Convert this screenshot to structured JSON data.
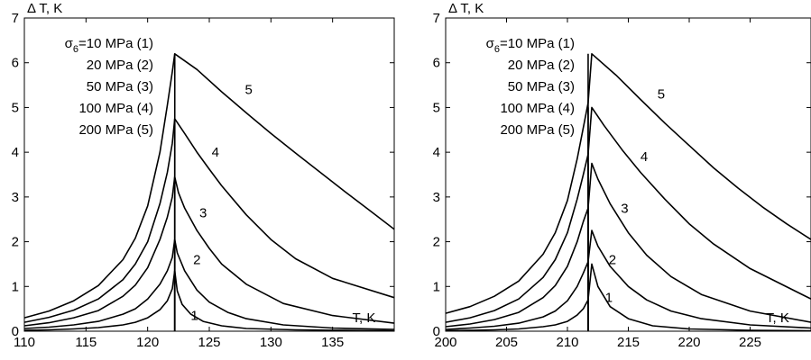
{
  "chart_data": [
    {
      "type": "line",
      "ylabel": "Δ T, K",
      "xlabel": "T, K",
      "xlim": [
        110,
        140
      ],
      "ylim": [
        0,
        7
      ],
      "xticks": [
        "110",
        "115",
        "120",
        "125",
        "130",
        "135"
      ],
      "yticks": [
        "0",
        "1",
        "2",
        "3",
        "4",
        "5",
        "6",
        "7"
      ],
      "grid": false,
      "legend": {
        "sigma_symbol": "σ",
        "sigma_subscript": "6",
        "lines": [
          "=10 MPa (1)",
          "20 MPa (2)",
          "50 MPa (3)",
          "100 MPa (4)",
          "200 MPa (5)"
        ]
      },
      "transition_T": 122.2,
      "series": [
        {
          "name": "1",
          "peak": 1.35,
          "x": [
            110,
            112,
            114,
            116,
            118,
            119,
            120,
            121,
            121.6,
            122.0,
            122.2,
            122.4,
            122.8,
            123.5,
            124.5,
            126,
            128,
            132,
            136,
            140
          ],
          "values": [
            0.02,
            0.03,
            0.05,
            0.08,
            0.14,
            0.2,
            0.3,
            0.48,
            0.68,
            0.95,
            1.35,
            0.9,
            0.6,
            0.38,
            0.22,
            0.12,
            0.06,
            0.03,
            0.02,
            0.01
          ]
        },
        {
          "name": "2",
          "peak": 2.05,
          "x": [
            110,
            112,
            114,
            116,
            118,
            119,
            120,
            121,
            121.6,
            122.0,
            122.2,
            122.4,
            123,
            124,
            125,
            126.5,
            128,
            131,
            135,
            140
          ],
          "values": [
            0.06,
            0.09,
            0.14,
            0.22,
            0.38,
            0.5,
            0.72,
            1.05,
            1.35,
            1.65,
            2.05,
            1.75,
            1.35,
            0.92,
            0.65,
            0.42,
            0.28,
            0.14,
            0.07,
            0.04
          ]
        },
        {
          "name": "3",
          "peak": 3.45,
          "x": [
            110,
            112,
            114,
            116,
            118,
            119,
            120,
            121,
            121.6,
            122.0,
            122.2,
            122.5,
            123,
            124,
            125,
            126,
            128,
            131,
            135,
            140
          ],
          "values": [
            0.12,
            0.19,
            0.3,
            0.46,
            0.78,
            1.03,
            1.42,
            2.05,
            2.55,
            3.0,
            3.45,
            3.1,
            2.75,
            2.25,
            1.85,
            1.5,
            1.05,
            0.62,
            0.35,
            0.18
          ]
        },
        {
          "name": "4",
          "peak": 4.75,
          "x": [
            110,
            112,
            114,
            116,
            118,
            119,
            120,
            121,
            121.6,
            122.0,
            122.2,
            123,
            124,
            125,
            126,
            128,
            130,
            132,
            135,
            140
          ],
          "values": [
            0.2,
            0.31,
            0.47,
            0.72,
            1.15,
            1.5,
            2.0,
            2.85,
            3.55,
            4.2,
            4.75,
            4.42,
            4.0,
            3.62,
            3.25,
            2.6,
            2.05,
            1.62,
            1.18,
            0.75
          ]
        },
        {
          "name": "5",
          "peak": 6.2,
          "x": [
            110,
            112,
            114,
            116,
            118,
            119,
            120,
            121,
            121.6,
            122.0,
            122.2,
            124,
            126,
            128,
            130,
            132,
            134,
            136,
            138,
            140
          ],
          "values": [
            0.3,
            0.45,
            0.68,
            1.02,
            1.6,
            2.08,
            2.8,
            4.0,
            5.05,
            5.8,
            6.2,
            5.85,
            5.35,
            4.88,
            4.42,
            3.98,
            3.55,
            3.12,
            2.7,
            2.28
          ]
        }
      ],
      "curve_labels": [
        {
          "text": "1",
          "x": 123.8,
          "y": 0.35
        },
        {
          "text": "2",
          "x": 124.0,
          "y": 1.6
        },
        {
          "text": "3",
          "x": 124.5,
          "y": 2.65
        },
        {
          "text": "4",
          "x": 125.5,
          "y": 4.0
        },
        {
          "text": "5",
          "x": 128.2,
          "y": 5.4
        }
      ],
      "axis_label_x_at": 136.6,
      "axis_label_y_at": 0.2
    },
    {
      "type": "line",
      "ylabel": "Δ T, K",
      "xlabel": "T, K",
      "xlim": [
        200,
        230
      ],
      "ylim": [
        0,
        7
      ],
      "xticks": [
        "200",
        "205",
        "210",
        "215",
        "220",
        "225"
      ],
      "yticks": [
        "0",
        "1",
        "2",
        "3",
        "4",
        "5",
        "6",
        "7"
      ],
      "grid": false,
      "legend": {
        "sigma_symbol": "σ",
        "sigma_subscript": "6",
        "lines": [
          "=10 MPa (1)",
          "20 MPa (2)",
          "50 MPa (3)",
          "100 MPa (4)",
          "200 MPa (5)"
        ]
      },
      "transition_T": 211.7,
      "series": [
        {
          "name": "1",
          "peak": 1.5,
          "x": [
            200,
            202,
            204,
            206,
            208,
            209,
            210,
            210.8,
            211.3,
            211.7,
            212.0,
            212.5,
            213.5,
            215,
            217,
            220,
            225,
            230
          ],
          "values": [
            0.01,
            0.02,
            0.03,
            0.05,
            0.1,
            0.14,
            0.22,
            0.36,
            0.5,
            0.7,
            1.5,
            1.0,
            0.55,
            0.28,
            0.12,
            0.05,
            0.02,
            0.01
          ]
        },
        {
          "name": "2",
          "peak": 2.25,
          "x": [
            200,
            202,
            204,
            206,
            208,
            209,
            210,
            210.8,
            211.3,
            211.7,
            212.0,
            212.5,
            213.5,
            215,
            216.5,
            218.5,
            221,
            225,
            230
          ],
          "values": [
            0.04,
            0.07,
            0.11,
            0.18,
            0.32,
            0.45,
            0.68,
            1.0,
            1.3,
            1.55,
            2.25,
            1.9,
            1.45,
            1.0,
            0.7,
            0.45,
            0.28,
            0.14,
            0.07
          ]
        },
        {
          "name": "3",
          "peak": 3.75,
          "x": [
            200,
            202,
            204,
            206,
            208,
            209,
            210,
            210.8,
            211.3,
            211.7,
            212.0,
            212.5,
            213.5,
            215,
            216.5,
            218.5,
            221,
            225,
            230
          ],
          "values": [
            0.1,
            0.16,
            0.26,
            0.42,
            0.75,
            1.02,
            1.45,
            2.0,
            2.45,
            2.75,
            3.75,
            3.4,
            2.85,
            2.2,
            1.7,
            1.22,
            0.82,
            0.45,
            0.2
          ]
        },
        {
          "name": "4",
          "peak": 5.0,
          "x": [
            200,
            202,
            204,
            206,
            208,
            209,
            210,
            210.8,
            211.3,
            211.7,
            212.0,
            213,
            214.5,
            216,
            218,
            220,
            222,
            225,
            230
          ],
          "values": [
            0.2,
            0.3,
            0.46,
            0.72,
            1.2,
            1.6,
            2.2,
            2.95,
            3.5,
            3.95,
            5.0,
            4.6,
            4.05,
            3.55,
            2.95,
            2.4,
            1.95,
            1.4,
            0.72
          ]
        },
        {
          "name": "5",
          "peak": 6.2,
          "x": [
            200,
            202,
            204,
            206,
            208,
            209,
            210,
            210.8,
            211.3,
            211.7,
            212.0,
            214,
            216,
            218,
            220,
            222,
            224,
            226,
            228,
            230
          ],
          "values": [
            0.4,
            0.55,
            0.78,
            1.12,
            1.72,
            2.2,
            2.92,
            3.85,
            4.55,
            5.1,
            6.2,
            5.72,
            5.18,
            4.65,
            4.15,
            3.65,
            3.2,
            2.78,
            2.4,
            2.05
          ]
        }
      ],
      "curve_labels": [
        {
          "text": "1",
          "x": 213.4,
          "y": 0.75
        },
        {
          "text": "2",
          "x": 213.7,
          "y": 1.6
        },
        {
          "text": "3",
          "x": 214.7,
          "y": 2.75
        },
        {
          "text": "4",
          "x": 216.3,
          "y": 3.9
        },
        {
          "text": "5",
          "x": 217.7,
          "y": 5.3
        }
      ],
      "axis_label_x_at": 226.3,
      "axis_label_y_at": 0.2
    }
  ]
}
